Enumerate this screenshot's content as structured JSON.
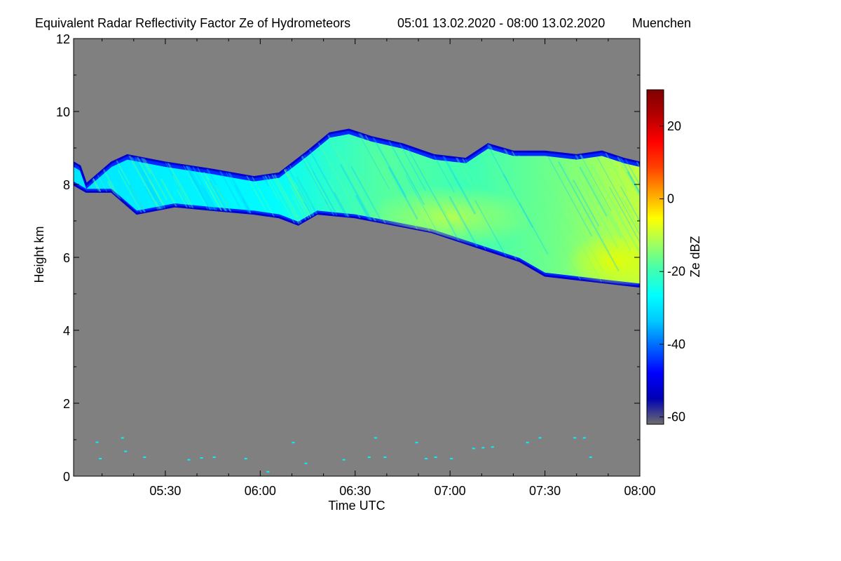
{
  "chart_data": {
    "type": "heatmap",
    "title": "Equivalent Radar Reflectivity Factor Ze of Hydrometeors",
    "time_range_label": "05:01 13.02.2020 - 08:00 13.02.2020",
    "location": "Muenchen",
    "xlabel": "Time UTC",
    "ylabel": "Height km",
    "x_range_minutes": [
      301,
      480
    ],
    "x_ticks": [
      {
        "minute": 330,
        "label": "05:30"
      },
      {
        "minute": 360,
        "label": "06:00"
      },
      {
        "minute": 390,
        "label": "06:30"
      },
      {
        "minute": 420,
        "label": "07:00"
      },
      {
        "minute": 450,
        "label": "07:30"
      },
      {
        "minute": 480,
        "label": "08:00"
      }
    ],
    "ylim": [
      0,
      12
    ],
    "y_ticks": [
      0,
      2,
      4,
      6,
      8,
      10,
      12
    ],
    "background_color": "#808080",
    "colorbar": {
      "label": "Ze dBZ",
      "range": [
        -62,
        30
      ],
      "ticks": [
        -60,
        -40,
        -20,
        0,
        20
      ],
      "colors": [
        "#6e6e6e",
        "#0000b4",
        "#0000ff",
        "#0064ff",
        "#00c8ff",
        "#00ffff",
        "#40ffb0",
        "#a0ff60",
        "#ffff00",
        "#ffa000",
        "#ff4000",
        "#ff0000",
        "#b40000",
        "#800000"
      ]
    },
    "cloud_layer": {
      "note": "ice cloud descending from ~8.6 km to ~5.2 km over the period",
      "top_km": [
        [
          301,
          8.6
        ],
        [
          303,
          8.5
        ],
        [
          305,
          8.0
        ],
        [
          313,
          8.6
        ],
        [
          318,
          8.8
        ],
        [
          330,
          8.6
        ],
        [
          345,
          8.4
        ],
        [
          358,
          8.2
        ],
        [
          366,
          8.3
        ],
        [
          375,
          8.9
        ],
        [
          382,
          9.4
        ],
        [
          388,
          9.5
        ],
        [
          395,
          9.3
        ],
        [
          405,
          9.1
        ],
        [
          415,
          8.8
        ],
        [
          425,
          8.7
        ],
        [
          432,
          9.1
        ],
        [
          440,
          8.9
        ],
        [
          450,
          8.9
        ],
        [
          460,
          8.8
        ],
        [
          468,
          8.9
        ],
        [
          475,
          8.7
        ],
        [
          480,
          8.6
        ]
      ],
      "base_km": [
        [
          301,
          8.0
        ],
        [
          305,
          7.8
        ],
        [
          313,
          7.8
        ],
        [
          321,
          7.2
        ],
        [
          333,
          7.4
        ],
        [
          345,
          7.3
        ],
        [
          358,
          7.2
        ],
        [
          366,
          7.1
        ],
        [
          372,
          6.9
        ],
        [
          378,
          7.2
        ],
        [
          390,
          7.1
        ],
        [
          402,
          6.9
        ],
        [
          414,
          6.7
        ],
        [
          428,
          6.3
        ],
        [
          442,
          5.9
        ],
        [
          450,
          5.5
        ],
        [
          460,
          5.4
        ],
        [
          470,
          5.3
        ],
        [
          480,
          5.2
        ]
      ],
      "core": [
        {
          "minute": 420,
          "height_km": 7.1,
          "ze_dbz": -12
        },
        {
          "minute": 472,
          "height_km": 5.9,
          "ze_dbz": -5
        }
      ],
      "edge_ze_dbz": -45,
      "fill_ze_dbz": -25
    },
    "low_level_echoes": {
      "ze_dbz": -28,
      "points": [
        [
          308,
          0.93
        ],
        [
          309,
          0.48
        ],
        [
          316,
          1.05
        ],
        [
          317,
          0.68
        ],
        [
          323,
          0.52
        ],
        [
          337,
          0.45
        ],
        [
          341,
          0.5
        ],
        [
          345,
          0.52
        ],
        [
          355,
          0.48
        ],
        [
          362,
          0.12
        ],
        [
          370,
          0.92
        ],
        [
          374,
          0.35
        ],
        [
          386,
          0.45
        ],
        [
          394,
          0.52
        ],
        [
          396,
          1.05
        ],
        [
          399,
          0.52
        ],
        [
          409,
          0.92
        ],
        [
          412,
          0.48
        ],
        [
          415,
          0.52
        ],
        [
          420,
          0.48
        ],
        [
          427,
          0.76
        ],
        [
          430,
          0.78
        ],
        [
          433,
          0.8
        ],
        [
          444,
          0.92
        ],
        [
          448,
          1.05
        ],
        [
          459,
          1.05
        ],
        [
          462,
          1.05
        ],
        [
          464,
          0.52
        ]
      ]
    }
  }
}
